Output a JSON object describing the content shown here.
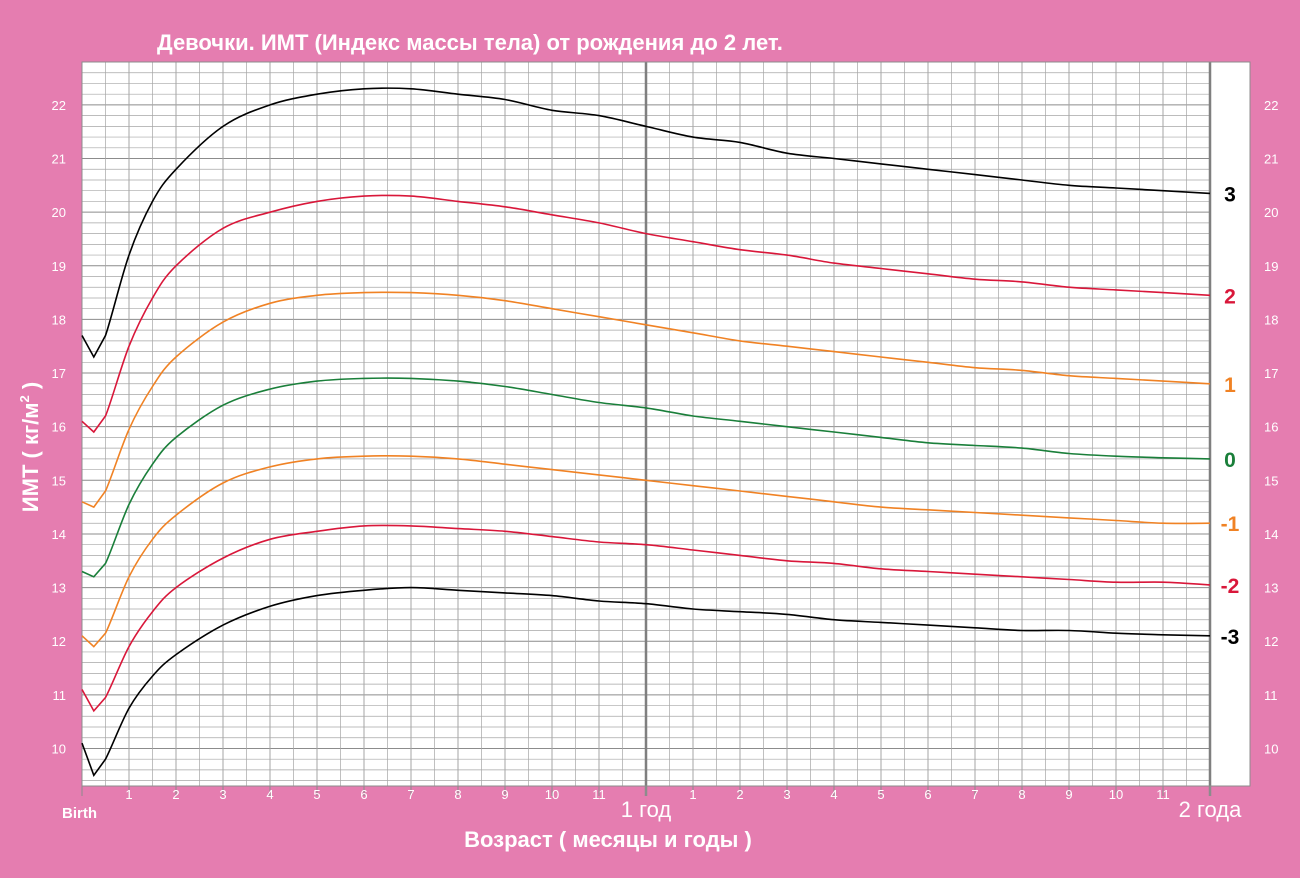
{
  "colors": {
    "background": "#e57db0",
    "plot_bg": "#ffffff",
    "grid_minor": "#a6a6a6",
    "grid_major": "#7f7f7f",
    "axis_text": "#ffffff",
    "tick_text_plot": "#606060"
  },
  "chart_data": {
    "type": "line",
    "title": "Девочки. ИМТ (Индекс массы тела) от рождения до 2 лет.",
    "xlabel": "Возраст (  месяцы  и годы )",
    "ylabel_prefix": "ИМТ ( кг/м",
    "ylabel_sup": "2",
    "ylabel_suffix": " )",
    "xlim": [
      0,
      24
    ],
    "ylim": [
      9.3,
      22.8
    ],
    "x_unit": "months",
    "x_tick_labels": [
      {
        "x": 0,
        "label": "Birth"
      },
      {
        "x": 1,
        "label": "1"
      },
      {
        "x": 2,
        "label": "2"
      },
      {
        "x": 3,
        "label": "3"
      },
      {
        "x": 4,
        "label": "4"
      },
      {
        "x": 5,
        "label": "5"
      },
      {
        "x": 6,
        "label": "6"
      },
      {
        "x": 7,
        "label": "7"
      },
      {
        "x": 8,
        "label": "8"
      },
      {
        "x": 9,
        "label": "9"
      },
      {
        "x": 10,
        "label": "10"
      },
      {
        "x": 11,
        "label": "11"
      },
      {
        "x": 12,
        "label": "1 год"
      },
      {
        "x": 13,
        "label": "1"
      },
      {
        "x": 14,
        "label": "2"
      },
      {
        "x": 15,
        "label": "3"
      },
      {
        "x": 16,
        "label": "4"
      },
      {
        "x": 17,
        "label": "5"
      },
      {
        "x": 18,
        "label": "6"
      },
      {
        "x": 19,
        "label": "7"
      },
      {
        "x": 20,
        "label": "8"
      },
      {
        "x": 21,
        "label": "9"
      },
      {
        "x": 22,
        "label": "10"
      },
      {
        "x": 23,
        "label": "11"
      },
      {
        "x": 24,
        "label": "2 года"
      }
    ],
    "y_ticks": [
      10,
      11,
      12,
      13,
      14,
      15,
      16,
      17,
      18,
      19,
      20,
      21,
      22
    ],
    "y_minor_step": 0.2,
    "x_minor_step": 0.5,
    "x_major": [
      12,
      24
    ],
    "grid": true,
    "series": [
      {
        "name": "3",
        "color": "#000000",
        "x": [
          0,
          0.25,
          0.5,
          1,
          1.5,
          2,
          3,
          4,
          5,
          6,
          7,
          8,
          9,
          10,
          11,
          12,
          13,
          14,
          15,
          16,
          17,
          18,
          19,
          20,
          21,
          22,
          23,
          24
        ],
        "y": [
          17.7,
          17.3,
          17.7,
          19.2,
          20.2,
          20.8,
          21.6,
          22.0,
          22.2,
          22.3,
          22.3,
          22.2,
          22.1,
          21.9,
          21.8,
          21.6,
          21.4,
          21.3,
          21.1,
          21.0,
          20.9,
          20.8,
          20.7,
          20.6,
          20.5,
          20.45,
          20.4,
          20.35
        ]
      },
      {
        "name": "2",
        "color": "#d9173a",
        "x": [
          0,
          0.25,
          0.5,
          1,
          1.5,
          2,
          3,
          4,
          5,
          6,
          7,
          8,
          9,
          10,
          11,
          12,
          13,
          14,
          15,
          16,
          17,
          18,
          19,
          20,
          21,
          22,
          23,
          24
        ],
        "y": [
          16.1,
          15.9,
          16.2,
          17.5,
          18.4,
          19.0,
          19.7,
          20.0,
          20.2,
          20.3,
          20.3,
          20.2,
          20.1,
          19.95,
          19.8,
          19.6,
          19.45,
          19.3,
          19.2,
          19.05,
          18.95,
          18.85,
          18.75,
          18.7,
          18.6,
          18.55,
          18.5,
          18.45
        ]
      },
      {
        "name": "1",
        "color": "#f08224",
        "x": [
          0,
          0.25,
          0.5,
          1,
          1.5,
          2,
          3,
          4,
          5,
          6,
          7,
          8,
          9,
          10,
          11,
          12,
          13,
          14,
          15,
          16,
          17,
          18,
          19,
          20,
          21,
          22,
          23,
          24
        ],
        "y": [
          14.6,
          14.5,
          14.8,
          15.95,
          16.75,
          17.3,
          17.95,
          18.3,
          18.45,
          18.5,
          18.5,
          18.45,
          18.35,
          18.2,
          18.05,
          17.9,
          17.75,
          17.6,
          17.5,
          17.4,
          17.3,
          17.2,
          17.1,
          17.05,
          16.95,
          16.9,
          16.85,
          16.8
        ]
      },
      {
        "name": "0",
        "color": "#1a7f3a",
        "x": [
          0,
          0.25,
          0.5,
          1,
          1.5,
          2,
          3,
          4,
          5,
          6,
          7,
          8,
          9,
          10,
          11,
          12,
          13,
          14,
          15,
          16,
          17,
          18,
          19,
          20,
          21,
          22,
          23,
          24
        ],
        "y": [
          13.3,
          13.2,
          13.45,
          14.55,
          15.3,
          15.8,
          16.4,
          16.7,
          16.85,
          16.9,
          16.9,
          16.85,
          16.75,
          16.6,
          16.45,
          16.35,
          16.2,
          16.1,
          16.0,
          15.9,
          15.8,
          15.7,
          15.65,
          15.6,
          15.5,
          15.45,
          15.42,
          15.4
        ]
      },
      {
        "name": "-1",
        "color": "#f08224",
        "x": [
          0,
          0.25,
          0.5,
          1,
          1.5,
          2,
          3,
          4,
          5,
          6,
          7,
          8,
          9,
          10,
          11,
          12,
          13,
          14,
          15,
          16,
          17,
          18,
          19,
          20,
          21,
          22,
          23,
          24
        ],
        "y": [
          12.1,
          11.9,
          12.15,
          13.2,
          13.9,
          14.35,
          14.95,
          15.25,
          15.4,
          15.45,
          15.45,
          15.4,
          15.3,
          15.2,
          15.1,
          15.0,
          14.9,
          14.8,
          14.7,
          14.6,
          14.5,
          14.45,
          14.4,
          14.35,
          14.3,
          14.25,
          14.2,
          14.2
        ]
      },
      {
        "name": "-2",
        "color": "#d9173a",
        "x": [
          0,
          0.25,
          0.5,
          1,
          1.5,
          2,
          3,
          4,
          5,
          6,
          7,
          8,
          9,
          10,
          11,
          12,
          13,
          14,
          15,
          16,
          17,
          18,
          19,
          20,
          21,
          22,
          23,
          24
        ],
        "y": [
          11.1,
          10.7,
          10.95,
          11.9,
          12.55,
          13.0,
          13.55,
          13.9,
          14.05,
          14.15,
          14.15,
          14.1,
          14.05,
          13.95,
          13.85,
          13.8,
          13.7,
          13.6,
          13.5,
          13.45,
          13.35,
          13.3,
          13.25,
          13.2,
          13.15,
          13.1,
          13.1,
          13.05
        ]
      },
      {
        "name": "-3",
        "color": "#000000",
        "x": [
          0,
          0.25,
          0.5,
          1,
          1.5,
          2,
          3,
          4,
          5,
          6,
          7,
          8,
          9,
          10,
          11,
          12,
          13,
          14,
          15,
          16,
          17,
          18,
          19,
          20,
          21,
          22,
          23,
          24
        ],
        "y": [
          10.1,
          9.5,
          9.8,
          10.75,
          11.35,
          11.75,
          12.3,
          12.65,
          12.85,
          12.95,
          13.0,
          12.95,
          12.9,
          12.85,
          12.75,
          12.7,
          12.6,
          12.55,
          12.5,
          12.4,
          12.35,
          12.3,
          12.25,
          12.2,
          12.2,
          12.15,
          12.12,
          12.1
        ]
      }
    ]
  }
}
